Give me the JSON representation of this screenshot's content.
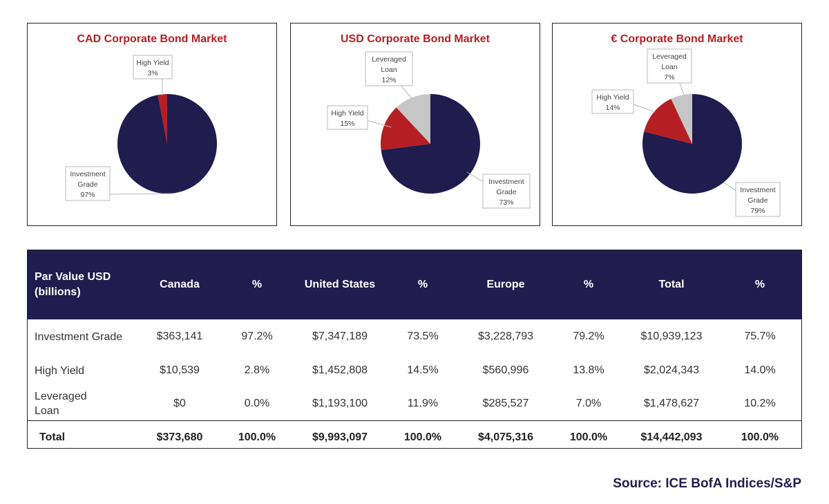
{
  "chart_data": [
    {
      "type": "pie",
      "title": "CAD Corporate Bond Market",
      "colors": [
        "#211c4e",
        "#b51f24"
      ],
      "slices": [
        {
          "label": [
            "Investment",
            "Grade"
          ],
          "value": 97,
          "pct_label": "97%"
        },
        {
          "label": [
            "High Yield"
          ],
          "value": 3,
          "pct_label": "3%"
        }
      ]
    },
    {
      "type": "pie",
      "title": "USD Corporate Bond Market",
      "colors": [
        "#211c4e",
        "#b51f24",
        "#c6c6c6"
      ],
      "slices": [
        {
          "label": [
            "Investment",
            "Grade"
          ],
          "value": 73,
          "pct_label": "73%"
        },
        {
          "label": [
            "High Yield"
          ],
          "value": 15,
          "pct_label": "15%"
        },
        {
          "label": [
            "Leveraged",
            "Loan"
          ],
          "value": 12,
          "pct_label": "12%"
        }
      ]
    },
    {
      "type": "pie",
      "title": "€ Corporate Bond Market",
      "colors": [
        "#211c4e",
        "#b51f24",
        "#c6c6c6"
      ],
      "slices": [
        {
          "label": [
            "Investment",
            "Grade"
          ],
          "value": 79,
          "pct_label": "79%"
        },
        {
          "label": [
            "High Yield"
          ],
          "value": 14,
          "pct_label": "14%"
        },
        {
          "label": [
            "Leveraged",
            "Loan"
          ],
          "value": 7,
          "pct_label": "7%"
        }
      ]
    }
  ],
  "table": {
    "header_line1": "Par Value USD",
    "header_line2": "(billions)",
    "columns": [
      "Canada",
      "%",
      "United States",
      "%",
      "Europe",
      "%",
      "Total",
      "%"
    ],
    "rows": [
      {
        "label_line1": "Investment Grade",
        "label_line2": "",
        "cells": [
          "$363,141",
          "97.2%",
          "$7,347,189",
          "73.5%",
          "$3,228,793",
          "79.2%",
          "$10,939,123",
          "75.7%"
        ]
      },
      {
        "label_line1": "High Yield",
        "label_line2": "",
        "cells": [
          "$10,539",
          "2.8%",
          "$1,452,808",
          "14.5%",
          "$560,996",
          "13.8%",
          "$2,024,343",
          "14.0%"
        ]
      },
      {
        "label_line1": "Leveraged",
        "label_line2": "Loan",
        "cells": [
          "$0",
          "0.0%",
          "$1,193,100",
          "11.9%",
          "$285,527",
          "7.0%",
          "$1,478,627",
          "10.2%"
        ]
      }
    ],
    "total": {
      "label": "Total",
      "cells": [
        "$373,680",
        "100.0%",
        "$9,993,097",
        "100.0%",
        "$4,075,316",
        "100.0%",
        "$14,442,093",
        "100.0%"
      ]
    }
  },
  "source": "Source: ICE BofA Indices/S&P"
}
